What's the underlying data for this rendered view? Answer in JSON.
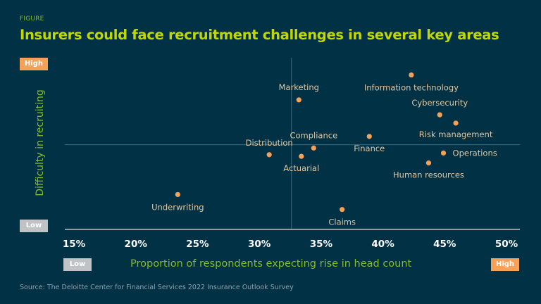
{
  "header": {
    "eyebrow": "FIGURE",
    "title": "Insurers could face recruitment challenges in several key areas"
  },
  "source": "Source: The Deloitte Center for Financial Services 2022 Insurance Outlook Survey",
  "colors": {
    "background": "#013145",
    "accent_green": "#86bc25",
    "title": "#c3d600",
    "point": "#f6a15a",
    "label": "#e2c7a0",
    "high_badge": "#f6a15a",
    "low_badge": "#bfc3c6"
  },
  "chart_data": {
    "type": "scatter",
    "title": "Insurers could face recruitment challenges in several key areas",
    "xlabel": "Proportion of respondents expecting rise in head count",
    "ylabel": "Difficulty in recruiting",
    "xlim": [
      15,
      50
    ],
    "ylim": [
      0,
      1
    ],
    "x_ticks": [
      "15%",
      "20%",
      "25%",
      "30%",
      "35%",
      "40%",
      "45%",
      "50%"
    ],
    "x_badges": {
      "low": "Low",
      "high": "High"
    },
    "y_badges": {
      "low": "Low",
      "high": "High"
    },
    "reference_lines": {
      "x": 32.6,
      "y": 0.51
    },
    "grid": false,
    "points": [
      {
        "label": "Information technology",
        "x": 42.3,
        "y": 0.93
      },
      {
        "label": "Marketing",
        "x": 33.2,
        "y": 0.78
      },
      {
        "label": "Cybersecurity",
        "x": 44.6,
        "y": 0.69
      },
      {
        "label": "Risk management",
        "x": 45.9,
        "y": 0.64
      },
      {
        "label": "Finance",
        "x": 38.9,
        "y": 0.56
      },
      {
        "label": "Compliance",
        "x": 34.4,
        "y": 0.49
      },
      {
        "label": "Distribution",
        "x": 30.8,
        "y": 0.45
      },
      {
        "label": "Actuarial",
        "x": 33.4,
        "y": 0.44
      },
      {
        "label": "Operations",
        "x": 44.9,
        "y": 0.46
      },
      {
        "label": "Human resources",
        "x": 43.7,
        "y": 0.4
      },
      {
        "label": "Underwriting",
        "x": 23.4,
        "y": 0.21
      },
      {
        "label": "Claims",
        "x": 36.7,
        "y": 0.12
      }
    ]
  }
}
